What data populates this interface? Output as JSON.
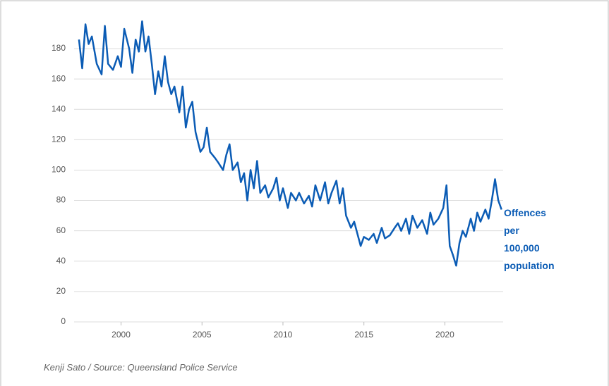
{
  "chart_data": {
    "type": "line",
    "footer": "Kenji Sato / Source: Queensland Police Service",
    "x": [
      1997.4,
      1997.6,
      1997.8,
      1998.0,
      1998.2,
      1998.5,
      1998.8,
      1999.0,
      1999.2,
      1999.5,
      1999.8,
      2000.0,
      2000.2,
      2000.5,
      2000.7,
      2000.9,
      2001.1,
      2001.3,
      2001.5,
      2001.7,
      2001.9,
      2002.1,
      2002.3,
      2002.5,
      2002.7,
      2002.9,
      2003.1,
      2003.3,
      2003.6,
      2003.8,
      2004.0,
      2004.2,
      2004.4,
      2004.6,
      2004.9,
      2005.1,
      2005.3,
      2005.5,
      2005.8,
      2006.0,
      2006.3,
      2006.5,
      2006.7,
      2006.9,
      2007.2,
      2007.4,
      2007.6,
      2007.8,
      2008.0,
      2008.2,
      2008.4,
      2008.6,
      2008.9,
      2009.1,
      2009.4,
      2009.6,
      2009.8,
      2010.0,
      2010.3,
      2010.5,
      2010.8,
      2011.0,
      2011.3,
      2011.6,
      2011.8,
      2012.0,
      2012.3,
      2012.6,
      2012.8,
      2013.0,
      2013.3,
      2013.5,
      2013.7,
      2013.9,
      2014.2,
      2014.4,
      2014.6,
      2014.8,
      2015.0,
      2015.3,
      2015.6,
      2015.8,
      2016.1,
      2016.3,
      2016.6,
      2016.9,
      2017.1,
      2017.3,
      2017.6,
      2017.8,
      2018.0,
      2018.3,
      2018.6,
      2018.9,
      2019.1,
      2019.3,
      2019.6,
      2019.9,
      2020.1,
      2020.3,
      2020.5,
      2020.7,
      2020.9,
      2021.1,
      2021.3,
      2021.6,
      2021.8,
      2022.0,
      2022.2,
      2022.5,
      2022.7,
      2022.9,
      2023.1,
      2023.3,
      2023.5
    ],
    "series": [
      {
        "name": "Offences per 100,000 population",
        "color": "#0b5cb5",
        "values": [
          186,
          167,
          196,
          183,
          188,
          170,
          163,
          195,
          170,
          166,
          175,
          168,
          193,
          180,
          164,
          186,
          178,
          198,
          178,
          188,
          170,
          150,
          165,
          155,
          175,
          158,
          150,
          155,
          138,
          155,
          128,
          140,
          145,
          125,
          112,
          115,
          128,
          112,
          108,
          105,
          100,
          110,
          117,
          100,
          105,
          92,
          98,
          80,
          100,
          88,
          106,
          85,
          90,
          82,
          88,
          95,
          80,
          88,
          75,
          85,
          80,
          85,
          78,
          83,
          76,
          90,
          80,
          92,
          78,
          85,
          93,
          78,
          88,
          70,
          62,
          66,
          58,
          50,
          56,
          54,
          58,
          52,
          62,
          55,
          57,
          62,
          65,
          60,
          68,
          58,
          70,
          62,
          67,
          58,
          72,
          64,
          68,
          75,
          90,
          50,
          44,
          37,
          52,
          60,
          56,
          68,
          60,
          72,
          66,
          74,
          68,
          80,
          94,
          80,
          74
        ]
      }
    ],
    "xlim": [
      1997.1,
      2023.6
    ],
    "xticks": [
      2000,
      2005,
      2010,
      2015,
      2020
    ],
    "ylim": [
      0,
      180
    ],
    "yticks": [
      0,
      20,
      40,
      60,
      80,
      100,
      120,
      140,
      160,
      180
    ],
    "grid": true
  }
}
